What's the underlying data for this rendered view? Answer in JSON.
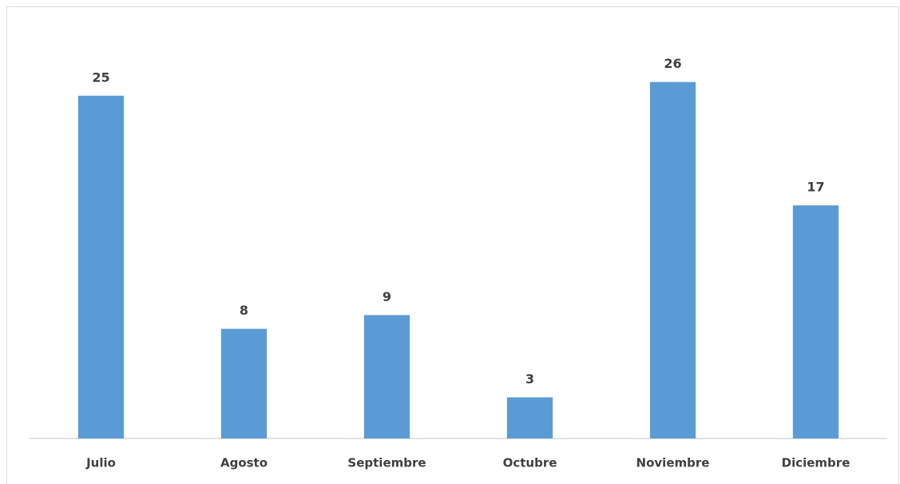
{
  "chart_data": {
    "type": "bar",
    "categories": [
      "Julio",
      "Agosto",
      "Septiembre",
      "Octubre",
      "Noviembre",
      "Diciembre"
    ],
    "values": [
      25,
      8,
      9,
      3,
      26,
      17
    ],
    "color": "#5b9bd5",
    "ylim": [
      0,
      30
    ]
  }
}
